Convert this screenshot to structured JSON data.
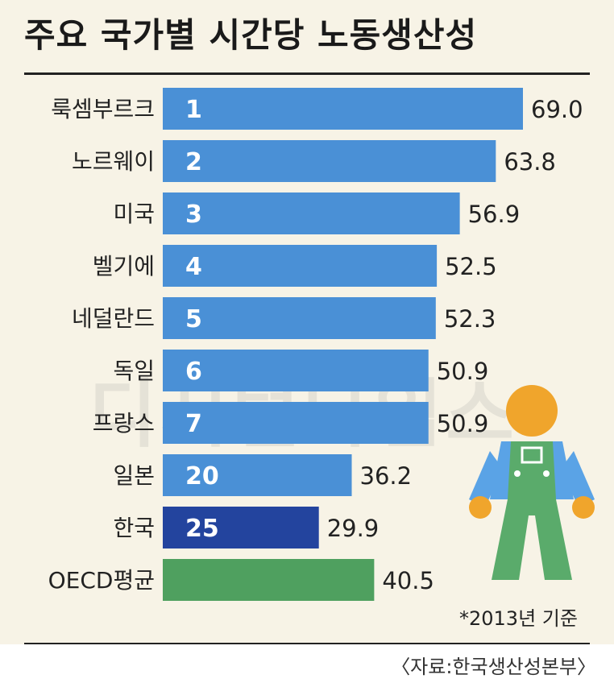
{
  "title": "주요 국가별 시간당 노동생산성",
  "note": "*2013년 기준",
  "source": "〈자료:한국생산성본부〉",
  "watermark": "디지털타임스",
  "colors": {
    "bar_default": "#4a90d6",
    "bar_korea": "#23449e",
    "bar_oecd": "#4fa05f",
    "worker_skin": "#f0a52c",
    "worker_shirt": "#5aa3e6",
    "worker_overall": "#5aab6b"
  },
  "chart_data": {
    "type": "bar",
    "orientation": "horizontal",
    "title": "주요 국가별 시간당 노동생산성",
    "categories": [
      "룩셈부르크",
      "노르웨이",
      "미국",
      "벨기에",
      "네덜란드",
      "독일",
      "프랑스",
      "일본",
      "한국",
      "OECD평균"
    ],
    "ranks": [
      "1",
      "2",
      "3",
      "4",
      "5",
      "6",
      "7",
      "20",
      "25",
      ""
    ],
    "values": [
      69.0,
      63.8,
      56.9,
      52.5,
      52.3,
      50.9,
      50.9,
      36.2,
      29.9,
      40.5
    ],
    "value_labels": [
      "69.0",
      "63.8",
      "56.9",
      "52.5",
      "52.3",
      "50.9",
      "50.9",
      "36.2",
      "29.9",
      "40.5"
    ],
    "highlight": {
      "한국": "bar_korea",
      "OECD평균": "bar_oecd"
    },
    "xlim": [
      0,
      69.0
    ],
    "grid": false,
    "legend": "none"
  }
}
